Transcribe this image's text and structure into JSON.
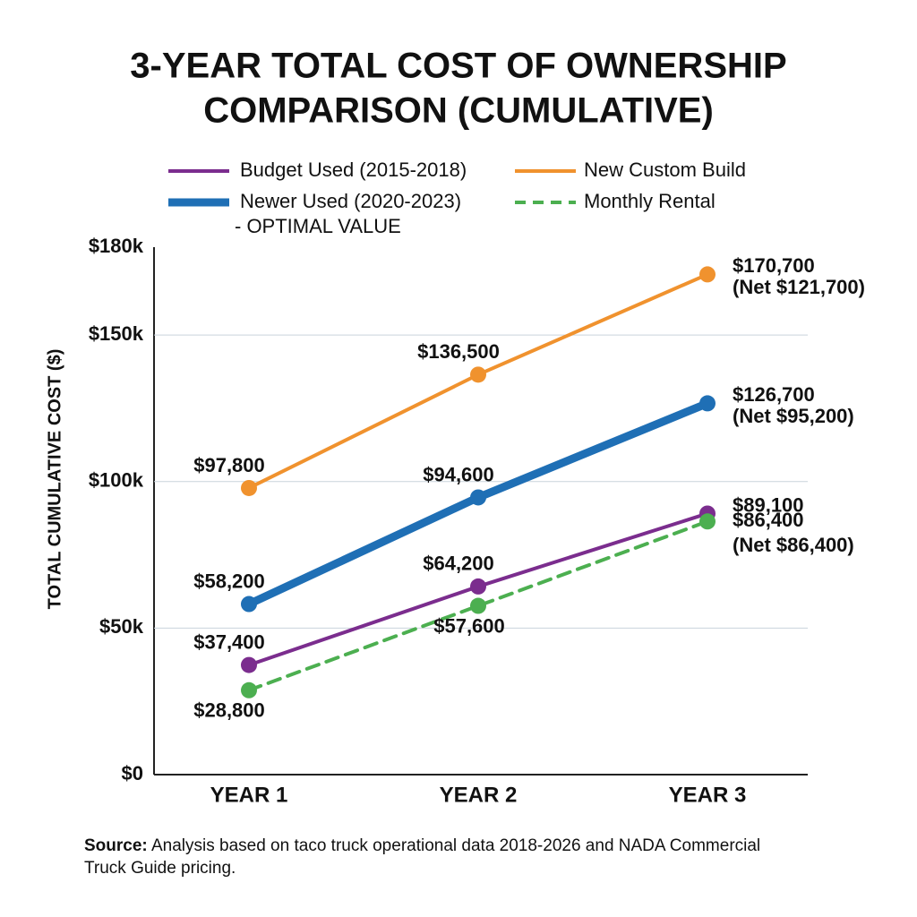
{
  "chart_data": {
    "type": "line",
    "title": [
      "3-YEAR TOTAL COST OF OWNERSHIP",
      "COMPARISON (CUMULATIVE)"
    ],
    "y_label": "TOTAL CUMULATIVE COST ($)",
    "categories": [
      "YEAR 1",
      "YEAR 2",
      "YEAR 3"
    ],
    "ylim": [
      0,
      180000
    ],
    "yticks": [
      {
        "value": 0,
        "label": "$0"
      },
      {
        "value": 50000,
        "label": "$50k"
      },
      {
        "value": 100000,
        "label": "$100k"
      },
      {
        "value": 150000,
        "label": "$150k"
      },
      {
        "value": 180000,
        "label": "$180k"
      }
    ],
    "grid": true,
    "series": [
      {
        "name": "Budget Used (2015-2018)",
        "color": "#7b2d8e",
        "width": 4,
        "dashed": false,
        "values": [
          37400,
          64200,
          89100
        ],
        "value_labels": [
          "$37,400",
          "$64,200",
          "$89,100"
        ]
      },
      {
        "name": "New Custom Build",
        "color": "#f0922e",
        "width": 4,
        "dashed": false,
        "values": [
          97800,
          136500,
          170700
        ],
        "value_labels": [
          "$97,800",
          "$136,500",
          "$170,700"
        ],
        "net_label": "(Net $121,700)"
      },
      {
        "name": "Newer Used (2020-2023)",
        "legend_note": "- OPTIMAL VALUE",
        "color": "#1f6fb5",
        "width": 9,
        "dashed": false,
        "values": [
          58200,
          94600,
          126700
        ],
        "value_labels": [
          "$58,200",
          "$94,600",
          "$126,700"
        ],
        "net_label": "(Net $95,200)"
      },
      {
        "name": "Monthly Rental",
        "color": "#4caf50",
        "width": 4,
        "dashed": true,
        "values": [
          28800,
          57600,
          86400
        ],
        "value_labels": [
          "$28,800",
          "$57,600",
          "$86,400"
        ],
        "net_label": "(Net $86,400)"
      }
    ],
    "source_label": "Source:",
    "source": [
      "Analysis based on taco truck operational data 2018-2026 and NADA Commercial",
      "Truck Guide pricing."
    ]
  }
}
